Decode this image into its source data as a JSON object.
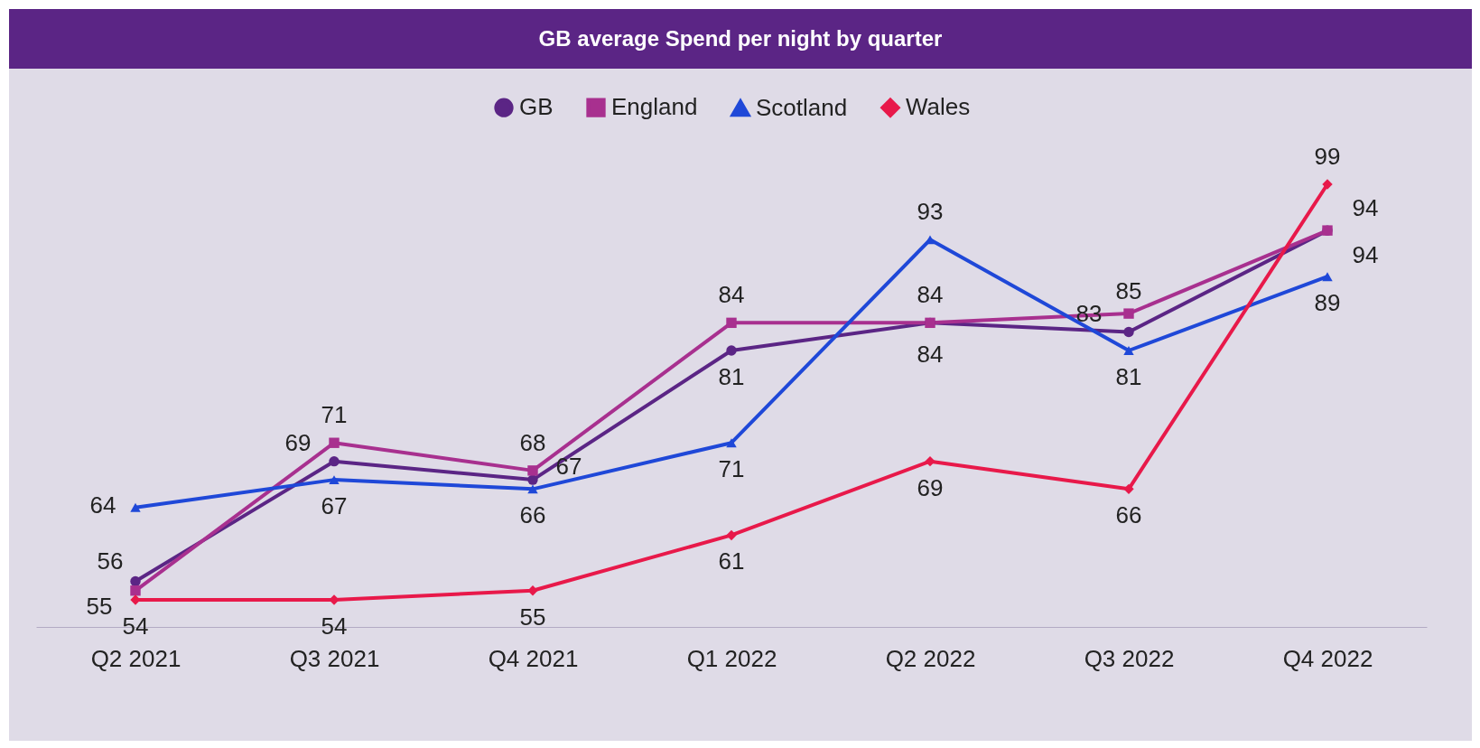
{
  "chart_data": {
    "type": "line",
    "title": "GB average Spend per night by quarter",
    "categories": [
      "Q2 2021",
      "Q3 2021",
      "Q4 2021",
      "Q1 2022",
      "Q2 2022",
      "Q3 2022",
      "Q4 2022"
    ],
    "series": [
      {
        "name": "GB",
        "color": "#5b2585",
        "marker": "circle",
        "values": [
          56,
          69,
          67,
          81,
          84,
          83,
          94
        ]
      },
      {
        "name": "England",
        "color": "#a8308f",
        "marker": "square",
        "values": [
          55,
          71,
          68,
          84,
          84,
          85,
          94
        ]
      },
      {
        "name": "Scotland",
        "color": "#1f48d8",
        "marker": "triangle",
        "values": [
          64,
          67,
          66,
          71,
          93,
          81,
          89
        ]
      },
      {
        "name": "Wales",
        "color": "#e8194a",
        "marker": "diamond",
        "values": [
          54,
          54,
          55,
          61,
          69,
          66,
          99
        ]
      }
    ],
    "data_labels": true,
    "legend": "top",
    "grid": false,
    "line_style": "solid"
  }
}
